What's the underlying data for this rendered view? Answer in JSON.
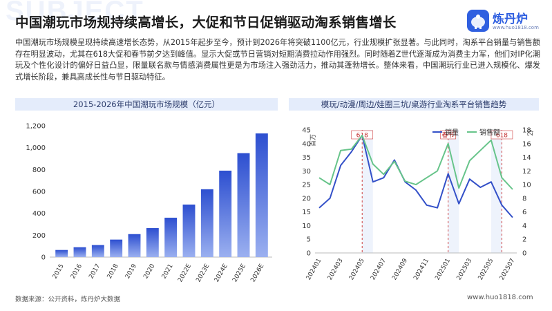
{
  "header": {
    "bg_word": "SUBJECT",
    "title": "中国潮玩市场规持续高增长，大促和节日促销驱动淘系销售增长",
    "logo_name": "炼丹炉",
    "logo_url": "www.huo1818.com"
  },
  "description": "中国潮玩市场规模呈现持续高速增长态势，从2015年起步至今，预计到2026年将突破1100亿元，行业规模扩张显著。与此同时，淘系平台销量与销售额存在明显波动，尤其在618大促和春节前夕达到峰值。显示大促或节日营销对短期消费拉动作用强烈。同时随着Z世代逐渐成为消费主力军，他们对IP化潮玩及个性化设计的偏好日益凸显，限量联名款与情感消费属性更是为市场注入强劲活力，推动其蓬勃增长。整体来看，中国潮玩行业已进入规模化、爆发式增长阶段，兼具高成长性与节日驱动特征。",
  "footer": {
    "source": "数据来源：公开资料，炼丹炉大数据",
    "site": "www.huo1818.com"
  },
  "colors": {
    "bar_top": "#2d4fd0",
    "bar_bottom": "#9bb0f0",
    "sales_volume": "#3350c8",
    "sales_amount": "#67c48a",
    "event_line": "#d04040"
  },
  "chart_data": [
    {
      "type": "bar",
      "title": "2015-2026年中国潮玩市场规模（亿元）",
      "categories": [
        "2015",
        "2016",
        "2017",
        "2018",
        "2019",
        "2020",
        "2021",
        "2022E",
        "2023E",
        "2024E",
        "2025E",
        "2026E"
      ],
      "values": [
        65,
        90,
        110,
        160,
        210,
        265,
        360,
        480,
        620,
        790,
        950,
        1130
      ],
      "ylim": [
        0,
        1200
      ],
      "yticks": [
        0,
        200,
        400,
        600,
        800,
        "1,000",
        "1,200"
      ],
      "grid": false
    },
    {
      "type": "line",
      "title": "模玩/动漫/周边/娃圈三坑/桌游行业淘系平台销售趋势",
      "x": [
        "202401",
        "202402",
        "202403",
        "202404",
        "202405",
        "202406",
        "202407",
        "202408",
        "202409",
        "202410",
        "202411",
        "202412",
        "202501",
        "202502",
        "202503",
        "202504",
        "202505",
        "202506",
        "202507"
      ],
      "x_tick_labels": [
        "202401",
        "202403",
        "202405",
        "202407",
        "202409",
        "202411",
        "202501",
        "202503",
        "202505",
        "202507"
      ],
      "y_left_label": "百万",
      "y_right_label": "亿",
      "y_left_lim": [
        0,
        45
      ],
      "y_right_lim": [
        0,
        18
      ],
      "y_left_ticks": [
        0,
        5,
        10,
        15,
        20,
        25,
        30,
        35,
        40,
        45
      ],
      "y_right_ticks": [
        0,
        2,
        4,
        6,
        8,
        10,
        12,
        14,
        16,
        18
      ],
      "legend": "top-right",
      "series": [
        {
          "name": "销量",
          "axis": "left",
          "values": [
            16.5,
            20,
            32,
            37,
            43,
            26,
            27.5,
            34,
            26,
            23,
            17.5,
            16.5,
            29,
            18,
            27,
            24,
            26,
            17.5,
            13
          ]
        },
        {
          "name": "销售额",
          "axis": "right",
          "values": [
            11,
            10,
            15,
            15.2,
            17.2,
            13,
            11.5,
            13.4,
            10.5,
            10,
            11,
            12,
            16,
            9.5,
            13.5,
            15,
            16.5,
            11,
            9.3
          ]
        }
      ],
      "event_markers": [
        {
          "label": "618",
          "x": "202405"
        },
        {
          "label": "春节",
          "x": "202501"
        },
        {
          "label": "618",
          "x": "202506"
        }
      ],
      "shaded_ranges": [
        [
          "202405",
          "202406"
        ],
        [
          "202501",
          "202502"
        ],
        [
          "202505",
          "202506"
        ]
      ]
    }
  ]
}
